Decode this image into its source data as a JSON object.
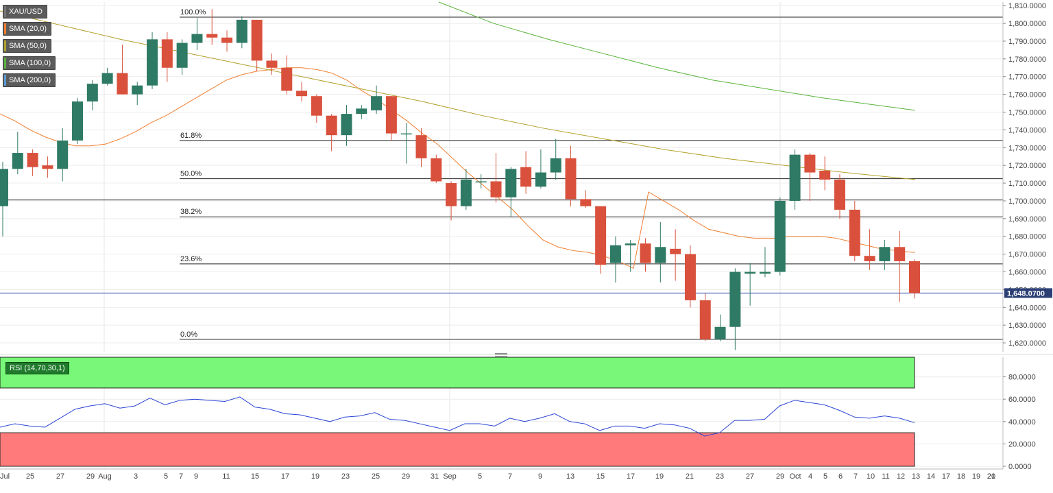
{
  "chart_data": [
    {
      "type": "candlestick",
      "symbol": "XAU/USD",
      "ylim": [
        1615,
        1812
      ],
      "y_ticks": [
        "1,810.0000",
        "1,800.0000",
        "1,790.0000",
        "1,780.0000",
        "1,770.0000",
        "1,760.0000",
        "1,750.0000",
        "1,740.0000",
        "1,730.0000",
        "1,720.0000",
        "1,710.0000",
        "1,700.0000",
        "1,690.0000",
        "1,680.0000",
        "1,670.0000",
        "1,660.0000",
        "1,650.0000",
        "1,640.0000",
        "1,630.0000",
        "1,620.0000"
      ],
      "y_tick_values": [
        1810,
        1800,
        1790,
        1780,
        1770,
        1760,
        1750,
        1740,
        1730,
        1720,
        1710,
        1700,
        1690,
        1680,
        1670,
        1660,
        1650,
        1640,
        1630,
        1620
      ],
      "x_tick_labels": [
        "Jul",
        "25",
        "27",
        "29",
        "Aug",
        "3",
        "5",
        "7",
        "9",
        "11",
        "15",
        "17",
        "19",
        "23",
        "25",
        "29",
        "31",
        "Sep",
        "5",
        "7",
        "9",
        "13",
        "15",
        "17",
        "19",
        "21",
        "23",
        "27",
        "29",
        "Oct",
        "4",
        "5",
        "6",
        "7",
        "10",
        "11",
        "12",
        "13",
        "14",
        "17",
        "18",
        "19",
        "20",
        "21"
      ],
      "last_price": 1648.07,
      "last_price_label": "1,648.0700",
      "horizontal_line": 1700.5,
      "fibonacci": [
        {
          "label": "100.0%",
          "value": 1803.5
        },
        {
          "label": "61.8%",
          "value": 1734
        },
        {
          "label": "50.0%",
          "value": 1712.5
        },
        {
          "label": "38.2%",
          "value": 1691
        },
        {
          "label": "23.6%",
          "value": 1664.5
        },
        {
          "label": "0.0%",
          "value": 1622
        }
      ],
      "legend": [
        "XAU/USD",
        "SMA (20,0)",
        "SMA (50,0)",
        "SMA (100,0)",
        "SMA (200,0)"
      ],
      "legend_colors": [
        "#777777",
        "#f07d2e",
        "#b3a02a",
        "#59b33c",
        "#5a9bd5"
      ],
      "candles": [
        {
          "o": 1697,
          "h": 1722,
          "l": 1680,
          "c": 1718
        },
        {
          "o": 1718,
          "h": 1739,
          "l": 1715,
          "c": 1727
        },
        {
          "o": 1727,
          "h": 1729,
          "l": 1714,
          "c": 1719
        },
        {
          "o": 1720,
          "h": 1725,
          "l": 1713,
          "c": 1718
        },
        {
          "o": 1718,
          "h": 1741,
          "l": 1711,
          "c": 1734
        },
        {
          "o": 1734,
          "h": 1758,
          "l": 1732,
          "c": 1756
        },
        {
          "o": 1756,
          "h": 1768,
          "l": 1751,
          "c": 1766
        },
        {
          "o": 1766,
          "h": 1775,
          "l": 1765,
          "c": 1772
        },
        {
          "o": 1772,
          "h": 1788,
          "l": 1760,
          "c": 1760
        },
        {
          "o": 1760,
          "h": 1767,
          "l": 1754,
          "c": 1765
        },
        {
          "o": 1765,
          "h": 1795,
          "l": 1763,
          "c": 1791
        },
        {
          "o": 1791,
          "h": 1795,
          "l": 1767,
          "c": 1775
        },
        {
          "o": 1775,
          "h": 1791,
          "l": 1771,
          "c": 1789
        },
        {
          "o": 1789,
          "h": 1803,
          "l": 1785,
          "c": 1794
        },
        {
          "o": 1794,
          "h": 1808,
          "l": 1788,
          "c": 1792
        },
        {
          "o": 1792,
          "h": 1796,
          "l": 1784,
          "c": 1789
        },
        {
          "o": 1789,
          "h": 1804,
          "l": 1786,
          "c": 1802
        },
        {
          "o": 1802,
          "h": 1802,
          "l": 1773,
          "c": 1779
        },
        {
          "o": 1779,
          "h": 1783,
          "l": 1771,
          "c": 1775
        },
        {
          "o": 1775,
          "h": 1782,
          "l": 1760,
          "c": 1762
        },
        {
          "o": 1762,
          "h": 1767,
          "l": 1756,
          "c": 1759
        },
        {
          "o": 1759,
          "h": 1760,
          "l": 1744,
          "c": 1748
        },
        {
          "o": 1748,
          "h": 1749,
          "l": 1728,
          "c": 1737
        },
        {
          "o": 1737,
          "h": 1754,
          "l": 1731,
          "c": 1749
        },
        {
          "o": 1749,
          "h": 1754,
          "l": 1746,
          "c": 1752
        },
        {
          "o": 1751,
          "h": 1765,
          "l": 1749,
          "c": 1759
        },
        {
          "o": 1759,
          "h": 1759,
          "l": 1734,
          "c": 1738
        },
        {
          "o": 1738,
          "h": 1744,
          "l": 1721,
          "c": 1738
        },
        {
          "o": 1737,
          "h": 1741,
          "l": 1719,
          "c": 1724
        },
        {
          "o": 1724,
          "h": 1726,
          "l": 1710,
          "c": 1711
        },
        {
          "o": 1710,
          "h": 1711,
          "l": 1689,
          "c": 1697
        },
        {
          "o": 1697,
          "h": 1718,
          "l": 1695,
          "c": 1712
        },
        {
          "o": 1711,
          "h": 1715,
          "l": 1707,
          "c": 1711
        },
        {
          "o": 1711,
          "h": 1727,
          "l": 1699,
          "c": 1702
        },
        {
          "o": 1702,
          "h": 1719,
          "l": 1691,
          "c": 1718
        },
        {
          "o": 1719,
          "h": 1728,
          "l": 1704,
          "c": 1708
        },
        {
          "o": 1708,
          "h": 1729,
          "l": 1707,
          "c": 1716
        },
        {
          "o": 1716,
          "h": 1735,
          "l": 1712,
          "c": 1724
        },
        {
          "o": 1724,
          "h": 1731,
          "l": 1697,
          "c": 1701
        },
        {
          "o": 1701,
          "h": 1706,
          "l": 1696,
          "c": 1697
        },
        {
          "o": 1697,
          "h": 1697,
          "l": 1659,
          "c": 1664
        },
        {
          "o": 1665,
          "h": 1680,
          "l": 1654,
          "c": 1675
        },
        {
          "o": 1675,
          "h": 1678,
          "l": 1660,
          "c": 1676
        },
        {
          "o": 1676,
          "h": 1679,
          "l": 1660,
          "c": 1665
        },
        {
          "o": 1665,
          "h": 1688,
          "l": 1654,
          "c": 1674
        },
        {
          "o": 1673,
          "h": 1684,
          "l": 1655,
          "c": 1670
        },
        {
          "o": 1670,
          "h": 1675,
          "l": 1640,
          "c": 1644
        },
        {
          "o": 1644,
          "h": 1648,
          "l": 1621,
          "c": 1622
        },
        {
          "o": 1622,
          "h": 1636,
          "l": 1621,
          "c": 1629
        },
        {
          "o": 1629,
          "h": 1662,
          "l": 1616,
          "c": 1660
        },
        {
          "o": 1659,
          "h": 1665,
          "l": 1641,
          "c": 1660
        },
        {
          "o": 1659,
          "h": 1674,
          "l": 1657,
          "c": 1660
        },
        {
          "o": 1660,
          "h": 1702,
          "l": 1658,
          "c": 1700
        },
        {
          "o": 1700,
          "h": 1729,
          "l": 1695,
          "c": 1726
        },
        {
          "o": 1726,
          "h": 1727,
          "l": 1700,
          "c": 1716
        },
        {
          "o": 1717,
          "h": 1725,
          "l": 1706,
          "c": 1712
        },
        {
          "o": 1712,
          "h": 1715,
          "l": 1690,
          "c": 1695
        },
        {
          "o": 1695,
          "h": 1700,
          "l": 1666,
          "c": 1669
        },
        {
          "o": 1669,
          "h": 1684,
          "l": 1661,
          "c": 1666
        },
        {
          "o": 1666,
          "h": 1678,
          "l": 1661,
          "c": 1674
        },
        {
          "o": 1674,
          "h": 1683,
          "l": 1643,
          "c": 1666
        },
        {
          "o": 1666,
          "h": 1667,
          "l": 1645,
          "c": 1648
        }
      ],
      "sma20": [
        1749,
        1745,
        1740,
        1736,
        1733,
        1731,
        1731,
        1732,
        1735,
        1739,
        1744,
        1748,
        1753,
        1758,
        1763,
        1768,
        1771,
        1773,
        1774,
        1775,
        1775,
        1774,
        1772,
        1768,
        1762,
        1757,
        1751,
        1745,
        1738,
        1732,
        1724,
        1716,
        1709,
        1702,
        1695,
        1686,
        1678,
        1674,
        1672,
        1671,
        1679,
        1680,
        1681,
        1679,
        1675,
        1671,
        1672,
        1668,
        1664,
        1661,
        1660,
        1658,
        1654,
        1650
      ],
      "sma20_x": [
        0,
        22,
        44,
        66,
        88,
        110,
        132,
        154,
        176,
        198,
        220,
        242,
        264,
        286,
        308,
        330,
        352,
        374,
        396,
        418,
        440,
        462,
        484,
        506,
        528,
        550,
        572,
        594,
        616,
        638,
        660,
        682,
        704,
        726,
        748,
        770,
        792,
        814,
        836,
        858,
        1131,
        1153,
        1175,
        1197,
        1219,
        1241,
        1263,
        1285,
        1307,
        1319,
        1331,
        1335,
        1337,
        1337
      ],
      "sma50": [
        1807,
        1799,
        1791,
        1784,
        1777,
        1770,
        1763,
        1756,
        1748,
        1741,
        1735,
        1729,
        1724,
        1720,
        1716,
        1712
      ],
      "sma50_x": [
        0,
        88,
        176,
        264,
        352,
        440,
        528,
        616,
        704,
        792,
        880,
        968,
        1056,
        1144,
        1232,
        1335
      ],
      "sma100": [
        1812,
        1800,
        1791,
        1783,
        1775,
        1768,
        1763,
        1758,
        1751
      ],
      "sma100_x": [
        640,
        720,
        800,
        880,
        960,
        1040,
        1120,
        1200,
        1335
      ]
    },
    {
      "type": "line",
      "title": "RSI (14,70,30,1)",
      "ylim": [
        0,
        100
      ],
      "upper_band": 70,
      "lower_band": 30,
      "y_ticks": [
        "80.0000",
        "60.0000",
        "40.0000",
        "20.0000",
        "0.0000"
      ],
      "y_tick_values": [
        80,
        60,
        40,
        20,
        0
      ],
      "values": [
        35,
        38,
        36,
        35,
        43,
        51,
        54,
        56,
        52,
        54,
        61,
        55,
        59,
        60,
        59,
        58,
        62,
        53,
        51,
        47,
        46,
        43,
        40,
        44,
        45,
        48,
        42,
        41,
        38,
        35,
        32,
        38,
        38,
        36,
        43,
        40,
        43,
        47,
        40,
        38,
        32,
        36,
        36,
        34,
        38,
        37,
        34,
        27,
        30,
        41,
        41,
        42,
        54,
        59,
        57,
        55,
        50,
        44,
        43,
        45,
        43,
        39
      ]
    }
  ]
}
